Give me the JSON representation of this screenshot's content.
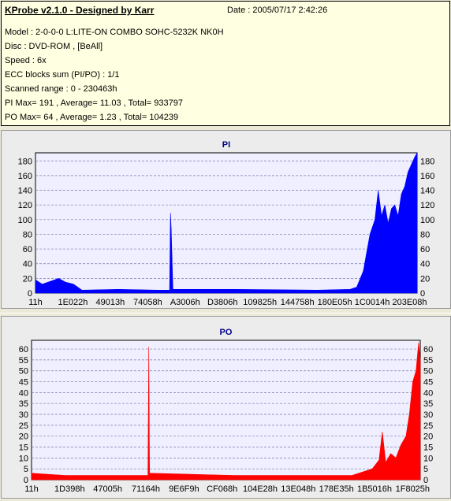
{
  "header": {
    "title": "KProbe v2.1.0 - Designed by Karr",
    "date": "Date : 2005/07/17 2:42:26",
    "lines": [
      "Model : 2-0-0-0 L:LITE-ON COMBO SOHC-5232K NK0H",
      "Disc : DVD-ROM ,  [BeAll]",
      "Speed : 6x",
      "ECC blocks sum (PI/PO) : 1/1",
      "Scanned range : 0 - 230463h",
      "PI Max= 191 , Average= 11.03 , Total= 933797",
      "PO Max= 64 , Average= 1.23 , Total= 104239"
    ]
  },
  "colors": {
    "pi": "#0000ff",
    "po": "#ff0000",
    "plot_bg": "#efefff",
    "title": "#00008b"
  },
  "chart_data": [
    {
      "type": "area",
      "title": "PI",
      "xlabel": "",
      "ylabel": "",
      "x_ticks": [
        "11h",
        "1E022h",
        "49013h",
        "74058h",
        "A3006h",
        "D3806h",
        "109825h",
        "144758h",
        "180E05h",
        "1C0014h",
        "203E08h"
      ],
      "y_ticks": [
        0,
        20,
        40,
        60,
        80,
        100,
        120,
        140,
        160,
        180
      ],
      "ylim": [
        0,
        191
      ],
      "xlim": [
        0,
        230463
      ],
      "grid": true,
      "points": [
        [
          0,
          18
        ],
        [
          4000,
          12
        ],
        [
          9000,
          16
        ],
        [
          14000,
          20
        ],
        [
          18000,
          15
        ],
        [
          23000,
          12
        ],
        [
          28000,
          4
        ],
        [
          50000,
          5
        ],
        [
          74000,
          4
        ],
        [
          81000,
          4
        ],
        [
          81500,
          109
        ],
        [
          82000,
          86
        ],
        [
          83000,
          5
        ],
        [
          120000,
          5
        ],
        [
          170000,
          4
        ],
        [
          190000,
          5
        ],
        [
          194000,
          8
        ],
        [
          198000,
          30
        ],
        [
          202000,
          80
        ],
        [
          205000,
          100
        ],
        [
          207000,
          140
        ],
        [
          209000,
          105
        ],
        [
          211000,
          120
        ],
        [
          213000,
          95
        ],
        [
          215000,
          115
        ],
        [
          217000,
          120
        ],
        [
          219000,
          105
        ],
        [
          221000,
          135
        ],
        [
          223000,
          145
        ],
        [
          225000,
          165
        ],
        [
          227000,
          175
        ],
        [
          229000,
          185
        ],
        [
          230463,
          191
        ]
      ]
    },
    {
      "type": "area",
      "title": "PO",
      "xlabel": "",
      "ylabel": "",
      "x_ticks": [
        "11h",
        "1D398h",
        "47005h",
        "71164h",
        "9E6F9h",
        "CF068h",
        "104E28h",
        "13E048h",
        "178E35h",
        "1B5016h",
        "1F8025h"
      ],
      "y_ticks": [
        0,
        5,
        10,
        15,
        20,
        25,
        30,
        35,
        40,
        45,
        50,
        55,
        60
      ],
      "ylim": [
        0,
        64
      ],
      "xlim": [
        0,
        230463
      ],
      "grid": true,
      "points": [
        [
          0,
          3
        ],
        [
          20000,
          2
        ],
        [
          40000,
          2
        ],
        [
          68000,
          2
        ],
        [
          69000,
          2
        ],
        [
          69500,
          61
        ],
        [
          70000,
          3
        ],
        [
          120000,
          2
        ],
        [
          190000,
          2
        ],
        [
          202000,
          5
        ],
        [
          206000,
          9
        ],
        [
          208000,
          22
        ],
        [
          210000,
          8
        ],
        [
          213000,
          12
        ],
        [
          216000,
          10
        ],
        [
          219000,
          16
        ],
        [
          222000,
          20
        ],
        [
          224000,
          30
        ],
        [
          226000,
          45
        ],
        [
          228000,
          50
        ],
        [
          229500,
          63
        ],
        [
          230463,
          55
        ]
      ]
    }
  ]
}
